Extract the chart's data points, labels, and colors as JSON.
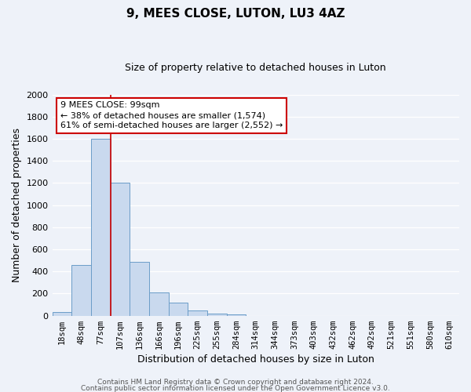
{
  "title": "9, MEES CLOSE, LUTON, LU3 4AZ",
  "subtitle": "Size of property relative to detached houses in Luton",
  "xlabel": "Distribution of detached houses by size in Luton",
  "ylabel": "Number of detached properties",
  "bar_labels": [
    "18sqm",
    "48sqm",
    "77sqm",
    "107sqm",
    "136sqm",
    "166sqm",
    "196sqm",
    "225sqm",
    "255sqm",
    "284sqm",
    "314sqm",
    "344sqm",
    "373sqm",
    "403sqm",
    "432sqm",
    "462sqm",
    "492sqm",
    "521sqm",
    "551sqm",
    "580sqm",
    "610sqm"
  ],
  "bar_values": [
    30,
    460,
    1600,
    1200,
    490,
    210,
    120,
    50,
    20,
    10,
    0,
    0,
    0,
    0,
    0,
    0,
    0,
    0,
    0,
    0,
    0
  ],
  "bar_color": "#c9d9ee",
  "bar_edge_color": "#6b9dc8",
  "vline_color": "#cc0000",
  "vline_idx": 2.5,
  "ylim": [
    0,
    2000
  ],
  "yticks": [
    0,
    200,
    400,
    600,
    800,
    1000,
    1200,
    1400,
    1600,
    1800,
    2000
  ],
  "annotation_line1": "9 MEES CLOSE: 99sqm",
  "annotation_line2": "← 38% of detached houses are smaller (1,574)",
  "annotation_line3": "61% of semi-detached houses are larger (2,552) →",
  "footer_line1": "Contains HM Land Registry data © Crown copyright and database right 2024.",
  "footer_line2": "Contains public sector information licensed under the Open Government Licence v3.0.",
  "bg_color": "#eef2f9",
  "grid_color": "#ffffff",
  "title_fontsize": 11,
  "subtitle_fontsize": 9,
  "axis_label_fontsize": 9,
  "tick_fontsize": 7.5,
  "annotation_fontsize": 8,
  "footer_fontsize": 6.5
}
